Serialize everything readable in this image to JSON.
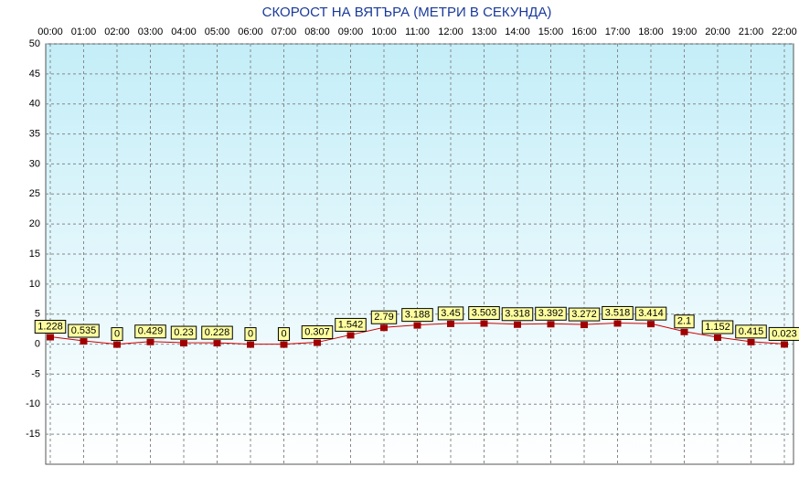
{
  "chart_data": {
    "type": "line",
    "title": "СКОРОСТ НА ВЯТЪРА (МЕТРИ В СЕКУНДА)",
    "categories": [
      "00:00",
      "01:00",
      "02:00",
      "03:00",
      "04:00",
      "05:00",
      "06:00",
      "07:00",
      "08:00",
      "09:00",
      "10:00",
      "11:00",
      "12:00",
      "13:00",
      "14:00",
      "15:00",
      "16:00",
      "17:00",
      "18:00",
      "19:00",
      "20:00",
      "21:00",
      "22:00"
    ],
    "values": [
      1.228,
      0.535,
      0,
      0.429,
      0.23,
      0.228,
      0,
      0,
      0.307,
      1.542,
      2.79,
      3.188,
      3.45,
      3.503,
      3.318,
      3.392,
      3.272,
      3.518,
      3.414,
      2.1,
      1.152,
      0.415,
      0.023
    ],
    "color": "#d00000",
    "marker_color": "#a00000",
    "label_color": "#ffffa0",
    "ylim": [
      -20,
      50
    ],
    "yticks": [
      50,
      45,
      40,
      35,
      30,
      25,
      20,
      15,
      10,
      5,
      0,
      -5,
      -10,
      -15
    ],
    "grid": true
  }
}
